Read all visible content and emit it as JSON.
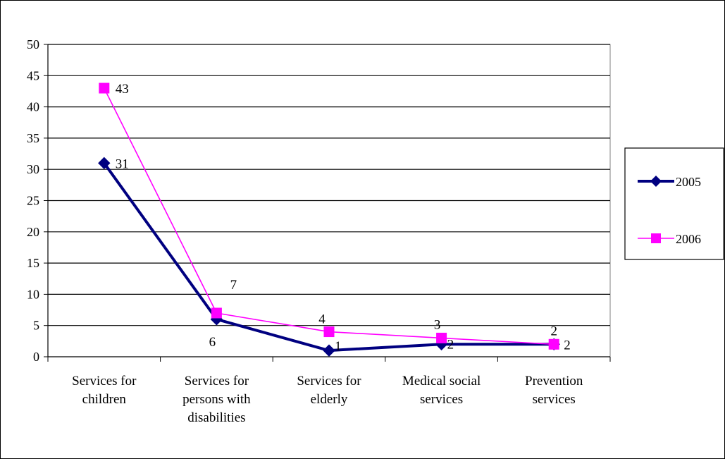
{
  "chart_data": {
    "type": "line",
    "categories": [
      [
        "Services for",
        "children"
      ],
      [
        "Services for",
        "persons with",
        "disabilities"
      ],
      [
        "Services for",
        "elderly"
      ],
      [
        "Medical social",
        "services"
      ],
      [
        "Prevention",
        "services"
      ]
    ],
    "ylim": [
      0,
      50
    ],
    "yticks": [
      0,
      5,
      10,
      15,
      20,
      25,
      30,
      35,
      40,
      45,
      50
    ],
    "grid": true,
    "legend_position": "right",
    "series": [
      {
        "name": "2005",
        "values": [
          31,
          6,
          1,
          2,
          2
        ],
        "labels": [
          "31",
          "6",
          "1",
          "2",
          "2"
        ],
        "color": "#000080",
        "marker": "diamond"
      },
      {
        "name": "2006",
        "values": [
          43,
          7,
          4,
          3,
          2
        ],
        "labels": [
          "43",
          "7",
          "4",
          "3",
          "2"
        ],
        "color": "#FF00FF",
        "marker": "square"
      }
    ]
  }
}
